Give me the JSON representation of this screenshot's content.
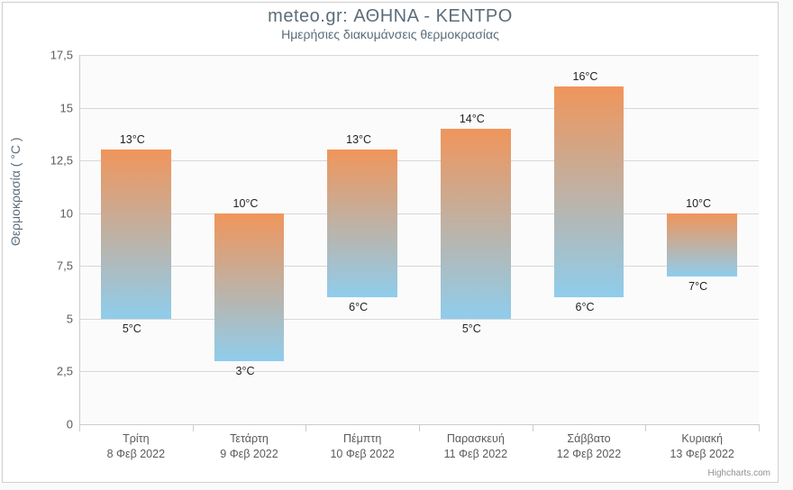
{
  "chart": {
    "type": "columnrange",
    "title": "meteo.gr: ΑΘΗΝΑ - ΚΕΝΤΡΟ",
    "subtitle": "Ημερήσιες διακυμάνσεις θερμοκρασίας",
    "yaxis_title": "Θερμοκρασία ( °C )",
    "credit": "Highcharts.com",
    "background_color": "#ffffff",
    "plot_background_color": "#fbfbfb",
    "border_color": "#d0d0d0",
    "grid_color": "#d8d8d8",
    "axis_color": "#c8cdd1",
    "title_color": "#5b6d7a",
    "tick_label_color": "#5b5b5b",
    "data_label_color": "#222222",
    "title_fontsize": 20,
    "subtitle_fontsize": 14,
    "axis_label_fontsize": 13,
    "data_label_fontsize": 12.5,
    "bar_gradient_top": "#f0955b",
    "bar_gradient_bottom": "#8fcdec",
    "bar_width_ratio": 0.62,
    "label_unit": "°C",
    "y_axis": {
      "min": 0,
      "max": 17.5,
      "tick_step": 2.5,
      "ticks": [
        "0",
        "2,5",
        "5",
        "7,5",
        "10",
        "12,5",
        "15",
        "17,5"
      ]
    },
    "categories": [
      {
        "line1": "Τρίτη",
        "line2": "8 Φεβ 2022"
      },
      {
        "line1": "Τετάρτη",
        "line2": "9 Φεβ 2022"
      },
      {
        "line1": "Πέμπτη",
        "line2": "10 Φεβ 2022"
      },
      {
        "line1": "Παρασκευή",
        "line2": "11 Φεβ 2022"
      },
      {
        "line1": "Σάββατο",
        "line2": "12 Φεβ 2022"
      },
      {
        "line1": "Κυριακή",
        "line2": "13 Φεβ 2022"
      }
    ],
    "data": [
      {
        "low": 5,
        "high": 13
      },
      {
        "low": 3,
        "high": 10
      },
      {
        "low": 6,
        "high": 13
      },
      {
        "low": 5,
        "high": 14
      },
      {
        "low": 6,
        "high": 16
      },
      {
        "low": 7,
        "high": 10
      }
    ]
  }
}
